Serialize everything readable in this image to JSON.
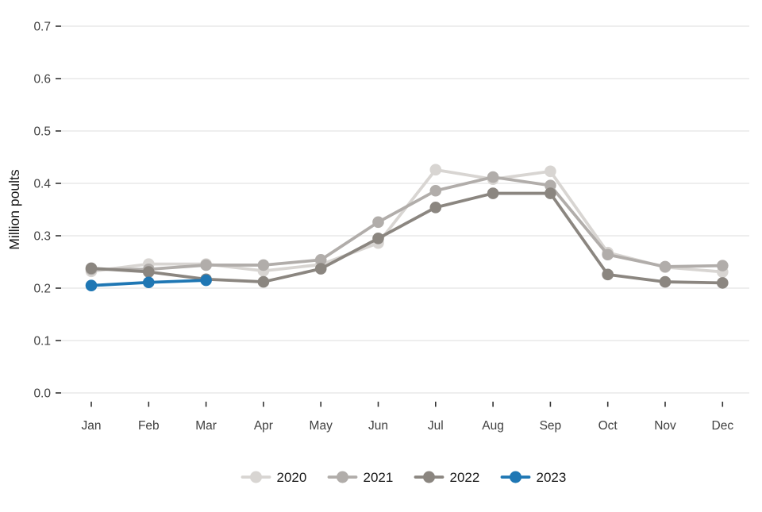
{
  "style": {
    "background": "#ffffff",
    "grid_color": "#e9e9e9",
    "tick_color": "#333333",
    "tick_label_color": "#404040",
    "text_color": "#1a1a1a"
  },
  "chart_data": {
    "type": "line",
    "title": "",
    "xlabel": "",
    "ylabel": "Million poults",
    "categories": [
      "Jan",
      "Feb",
      "Mar",
      "Apr",
      "May",
      "Jun",
      "Jul",
      "Aug",
      "Sep",
      "Oct",
      "Nov",
      "Dec"
    ],
    "y_ticks": [
      0.0,
      0.1,
      0.2,
      0.3,
      0.4,
      0.5,
      0.6,
      0.7
    ],
    "y_tick_labels": [
      "0.0",
      "0.1",
      "0.2",
      "0.3",
      "0.4",
      "0.5",
      "0.6",
      "0.7"
    ],
    "ylim": [
      0.0,
      0.73
    ],
    "grid": "horizontal-only",
    "legend_position": "bottom-center",
    "series": [
      {
        "name": "2020",
        "color": "#d8d5d2",
        "values": [
          0.232,
          0.246,
          0.246,
          0.233,
          0.245,
          0.286,
          0.426,
          0.408,
          0.423,
          0.268,
          0.24,
          0.231
        ]
      },
      {
        "name": "2021",
        "color": "#b1adaa",
        "values": [
          0.236,
          0.236,
          0.244,
          0.244,
          0.254,
          0.326,
          0.386,
          0.412,
          0.396,
          0.264,
          0.241,
          0.243
        ]
      },
      {
        "name": "2022",
        "color": "#8b8680",
        "values": [
          0.238,
          0.231,
          0.217,
          0.212,
          0.237,
          0.295,
          0.354,
          0.381,
          0.381,
          0.226,
          0.212,
          0.21
        ]
      },
      {
        "name": "2023",
        "color": "#1f77b4",
        "values": [
          0.205,
          0.211,
          0.215,
          null,
          null,
          null,
          null,
          null,
          null,
          null,
          null,
          null
        ]
      }
    ]
  }
}
